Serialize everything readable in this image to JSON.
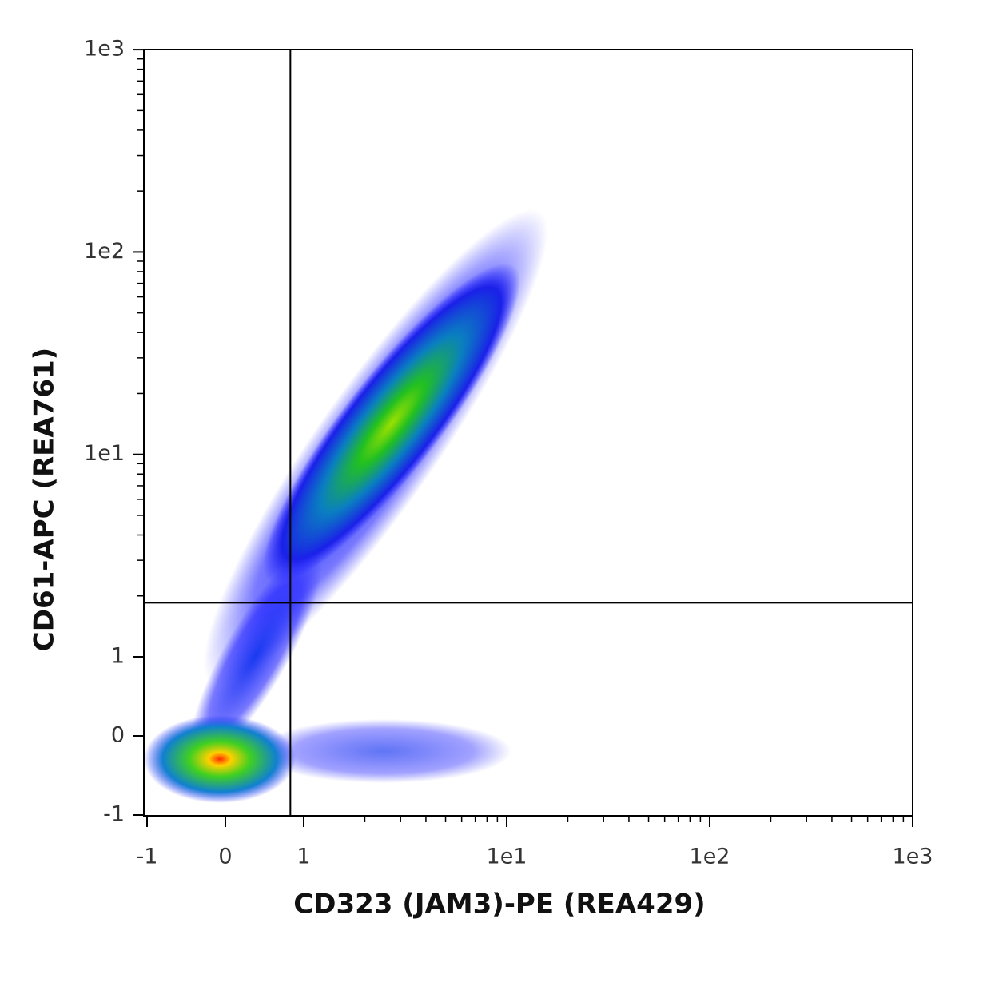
{
  "chart_data": {
    "type": "density",
    "xlabel": "CD323 (JAM3)-PE (REA429)",
    "ylabel": "CD61-APC (REA761)",
    "xscale": "biexponential",
    "yscale": "biexponential",
    "xlim": [
      -1,
      1000
    ],
    "ylim": [
      -1,
      1000
    ],
    "xticks": [
      -1,
      0,
      1,
      {
        "value": 10,
        "label": "1e1"
      },
      {
        "value": 100,
        "label": "1e2"
      },
      {
        "value": 1000,
        "label": "1e3"
      }
    ],
    "yticks": [
      -1,
      0,
      1,
      {
        "value": 10,
        "label": "1e1"
      },
      {
        "value": 100,
        "label": "1e2"
      },
      {
        "value": 1000,
        "label": "1e3"
      }
    ],
    "minorticks": [
      2,
      3,
      4,
      5,
      6,
      7,
      8,
      9,
      20,
      30,
      40,
      50,
      60,
      70,
      80,
      90,
      200,
      300,
      400,
      500,
      600,
      700,
      800,
      900
    ],
    "gates": {
      "x": 0.83,
      "y": 1.85
    }
  }
}
